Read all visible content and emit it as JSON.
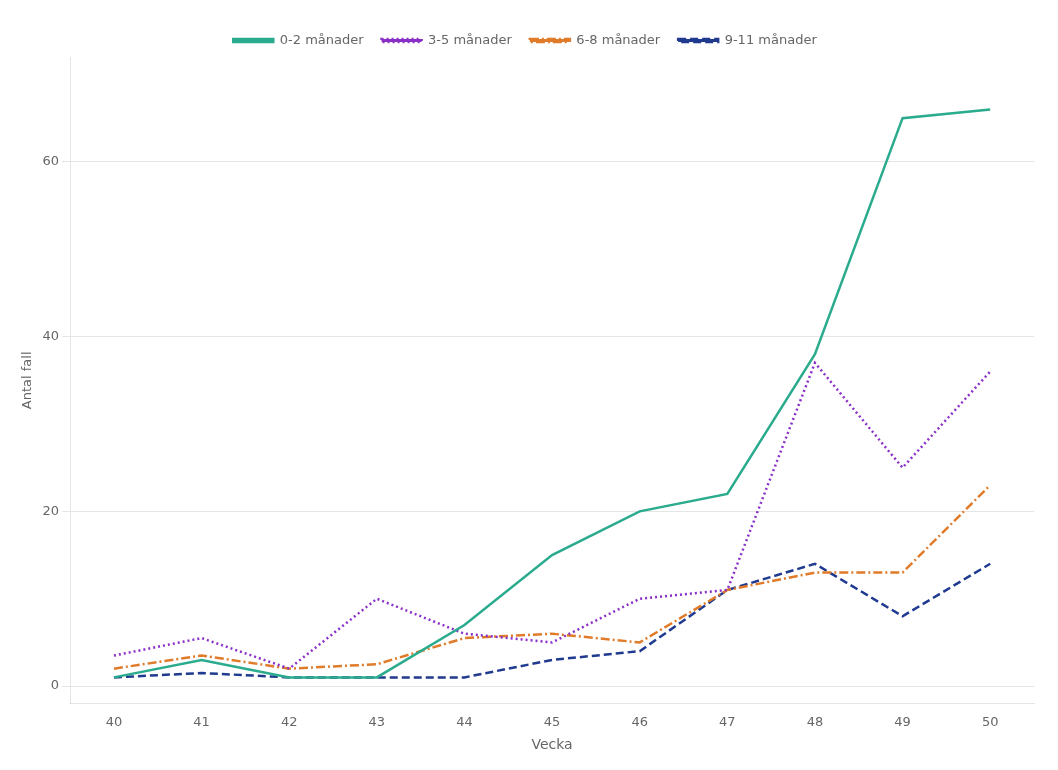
{
  "chart_data": {
    "type": "line",
    "x": [
      40,
      41,
      42,
      43,
      44,
      45,
      46,
      47,
      48,
      49,
      50
    ],
    "series": [
      {
        "name": "0-2 månader",
        "color": "#2aab8e",
        "line_style": "solid",
        "values": [
          1,
          3,
          1,
          1,
          7,
          15,
          20,
          22,
          38,
          65,
          66
        ]
      },
      {
        "name": "3-5 månader",
        "color": "#8B2FC9",
        "line_style": "dotted",
        "values": [
          3.5,
          5.5,
          2,
          10,
          6,
          5,
          10,
          11,
          37,
          25,
          36
        ]
      },
      {
        "name": "6-8 månader",
        "color": "#E07B2A",
        "line_style": "dashdot",
        "values": [
          2,
          3.5,
          2,
          2.5,
          5.5,
          6,
          5,
          11,
          13,
          13,
          23
        ]
      },
      {
        "name": "9-11 månader",
        "color": "#1F3A8F",
        "line_style": "dashed",
        "values": [
          1,
          1.5,
          1,
          1,
          1,
          3,
          4,
          11,
          14,
          8,
          14
        ]
      }
    ],
    "xlabel": "Vecka",
    "ylabel": "Antal fall",
    "xlim": [
      39.5,
      50.5
    ],
    "xticks": [
      40,
      41,
      42,
      43,
      44,
      45,
      46,
      47,
      48,
      49,
      50
    ],
    "ylim": [
      -2,
      72
    ],
    "yticks": [
      0,
      20,
      40,
      60
    ],
    "grid": "y",
    "legend": "top"
  }
}
